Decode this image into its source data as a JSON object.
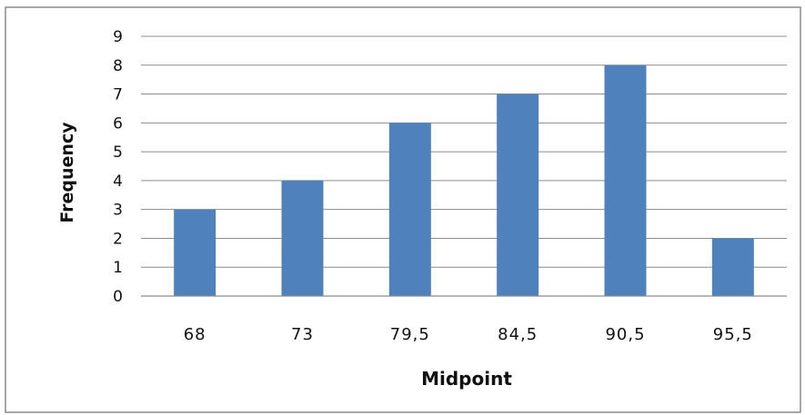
{
  "chart_data": {
    "type": "bar",
    "categories": [
      "68",
      "73",
      "79,5",
      "84,5",
      "90,5",
      "95,5"
    ],
    "values": [
      3,
      4,
      6,
      7,
      8,
      2
    ],
    "title": "",
    "xlabel": "Midpoint",
    "ylabel": "Frequency",
    "ylim": [
      0,
      9
    ],
    "yticks": [
      "0",
      "1",
      "2",
      "3",
      "4",
      "5",
      "6",
      "7",
      "8",
      "9"
    ],
    "grid": true,
    "legend": "none",
    "bar_color": "#4f81bd"
  }
}
